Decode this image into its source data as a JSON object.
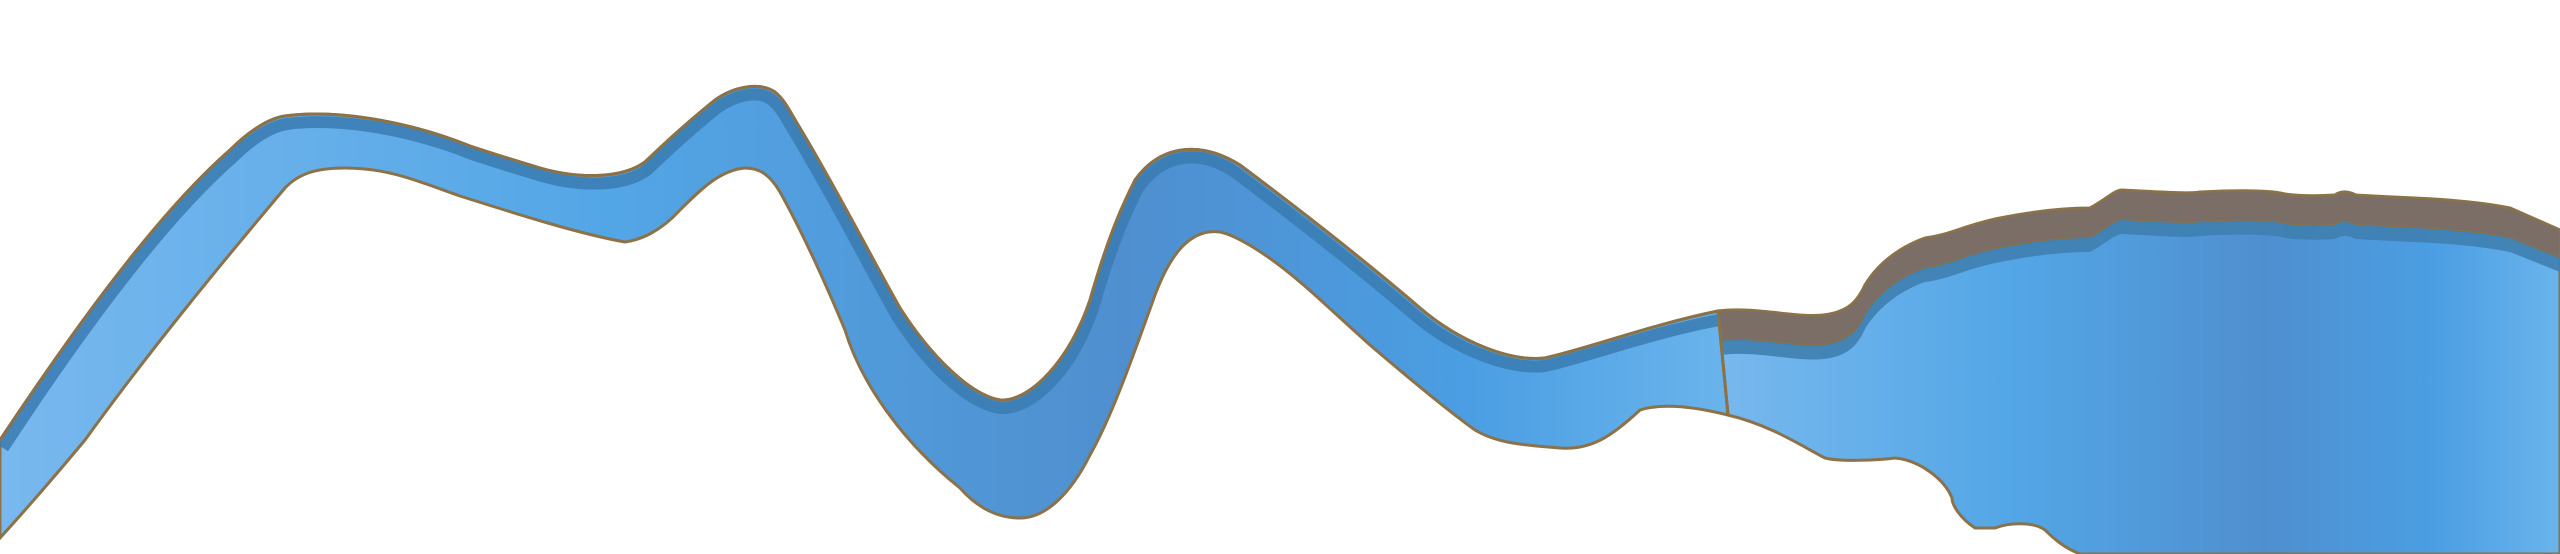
{
  "scene": {
    "background_color": "#ffffff",
    "colors": {
      "water_light": "#6db4ee",
      "water_mid": "#4ea2e4",
      "water_deep": "#4f8fcf",
      "water_band": "#3f7fb0",
      "bank_brown": "#7a6e66",
      "outline_brown": "#8b7248",
      "shadow_blue": "#3a7bb2"
    }
  }
}
